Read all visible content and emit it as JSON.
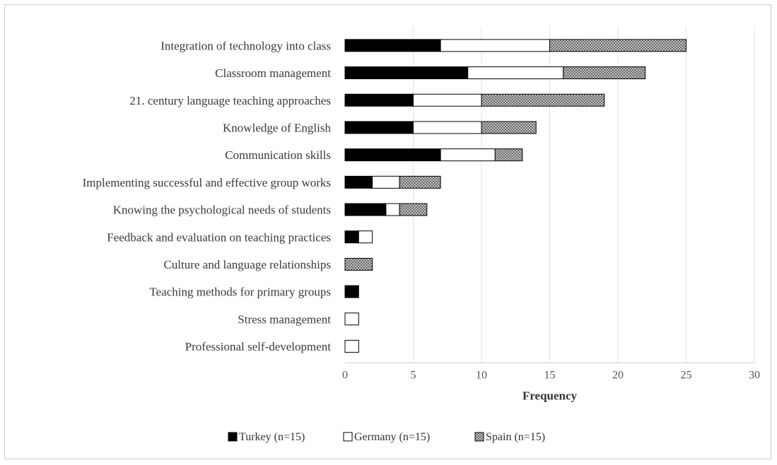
{
  "chart_data": {
    "type": "bar",
    "orientation": "horizontal",
    "stacked": true,
    "categories": [
      "Integration of technology into class",
      "Classroom management",
      "21. century language teaching approaches",
      "Knowledge of English",
      "Communication skills",
      "Implementing successful and effective group works",
      "Knowing the psychological needs of students",
      "Feedback and evaluation on teaching practices",
      "Culture and language relationships",
      "Teaching methods for primary groups",
      "Stress management",
      "Professional self-development"
    ],
    "series": [
      {
        "name": "Turkey (n=15)",
        "values": [
          7,
          9,
          5,
          5,
          7,
          2,
          3,
          1,
          0,
          1,
          0,
          0
        ],
        "fill": "#000000"
      },
      {
        "name": "Germany (n=15)",
        "values": [
          8,
          7,
          5,
          5,
          4,
          2,
          1,
          1,
          0,
          0,
          1,
          1
        ],
        "fill": "#ffffff"
      },
      {
        "name": "Spain (n=15)",
        "values": [
          10,
          6,
          9,
          4,
          2,
          3,
          2,
          0,
          2,
          0,
          0,
          0
        ],
        "fill": "crosshatch"
      }
    ],
    "xlim": [
      0,
      30
    ],
    "xticks": [
      0,
      5,
      10,
      15,
      20,
      25,
      30
    ],
    "xlabel": "Frequency",
    "ylabel": "",
    "title": "",
    "grid": "vertical gridlines",
    "legend_position": "bottom"
  }
}
